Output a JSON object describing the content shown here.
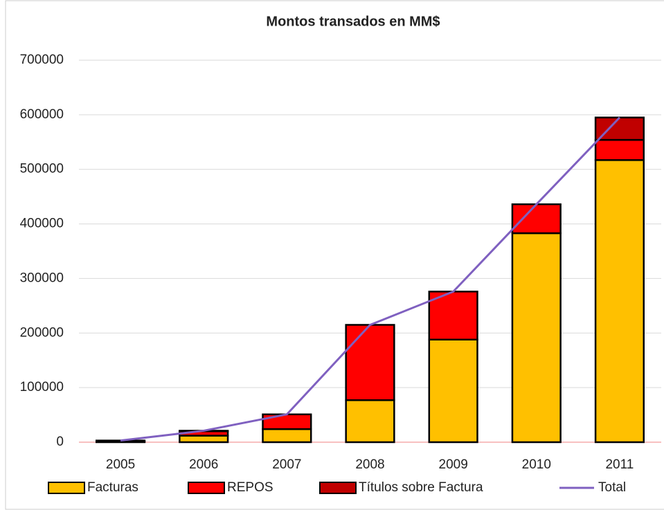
{
  "chart_data": {
    "type": "bar",
    "stacked": true,
    "title": "Montos transados  en MM$",
    "categories": [
      "2005",
      "2006",
      "2007",
      "2008",
      "2009",
      "2010",
      "2011"
    ],
    "series": [
      {
        "name": "Facturas",
        "color": "#ffc000",
        "values": [
          1000,
          12000,
          24000,
          77000,
          188000,
          383000,
          517000
        ]
      },
      {
        "name": "REPOS",
        "color": "#ff0000",
        "values": [
          2000,
          8000,
          27000,
          138000,
          88000,
          53000,
          37000
        ]
      },
      {
        "name": "Títulos sobre Factura",
        "color": "#c00000",
        "values": [
          0,
          1000,
          0,
          0,
          0,
          0,
          41000
        ]
      },
      {
        "name": "Total",
        "type": "line",
        "color": "#7f60c0",
        "values": [
          3000,
          21000,
          51000,
          215000,
          276000,
          436000,
          595000
        ]
      }
    ],
    "ylim": [
      0,
      700000
    ],
    "yticks": [
      0,
      100000,
      200000,
      300000,
      400000,
      500000,
      600000,
      700000
    ],
    "grid": true,
    "legend": "bottom"
  }
}
